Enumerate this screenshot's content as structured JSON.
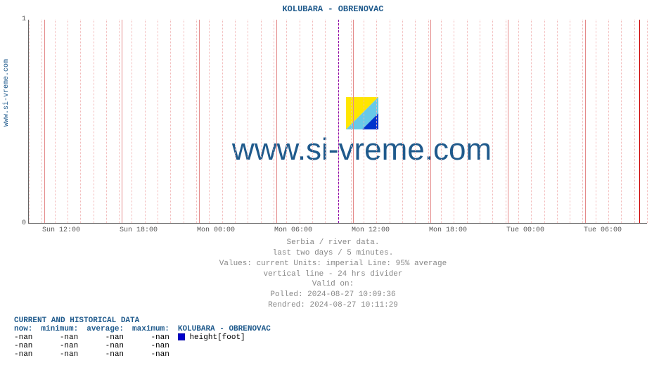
{
  "title": "KOLUBARA -  OBRENOVAC",
  "y_axis_label": "www.si-vreme.com",
  "watermark_text": "www.si-vreme.com",
  "chart": {
    "type": "line",
    "background_color": "#ffffff",
    "grid_minor_color": "#f2b8b8",
    "grid_major_color": "#e48a8a",
    "axis_color": "#666666",
    "divider_color": "#8800aa",
    "now_line_color": "#cc0000",
    "text_color": "#555555",
    "accent_color": "#1f5a8c",
    "ylim": [
      0,
      1
    ],
    "yticks": [
      0,
      1
    ],
    "x_tick_labels": [
      "Sun 12:00",
      "Sun 18:00",
      "Mon 00:00",
      "Mon 06:00",
      "Mon 12:00",
      "Mon 18:00",
      "Tue 00:00",
      "Tue 06:00"
    ],
    "x_tick_positions_pct": [
      2.5,
      15.0,
      27.5,
      40.0,
      52.5,
      65.0,
      77.5,
      90.0
    ],
    "x_minor_count_per_major": 6,
    "divider_position_pct": 50.0,
    "now_position_pct": 98.7,
    "series": [
      {
        "label": "height[foot]",
        "color": "#0000cc",
        "values": []
      }
    ]
  },
  "watermark_logo": {
    "colors": [
      "#ffe600",
      "#68c9e8",
      "#0033cc"
    ]
  },
  "meta_lines": [
    "Serbia / river data.",
    "last two days / 5 minutes.",
    "Values: current  Units: imperial  Line: 95% average",
    "vertical line - 24 hrs  divider",
    "Valid on:",
    "Polled: 2024-08-27 10:09:36",
    "Rendred: 2024-08-27 10:11:29"
  ],
  "data_table": {
    "header": "CURRENT AND HISTORICAL DATA",
    "columns": [
      "now:",
      "minimum:",
      "average:",
      "maximum:"
    ],
    "series_header": "KOLUBARA -  OBRENOVAC",
    "rows": [
      [
        "-nan",
        "-nan",
        "-nan",
        "-nan"
      ],
      [
        "-nan",
        "-nan",
        "-nan",
        "-nan"
      ],
      [
        "-nan",
        "-nan",
        "-nan",
        "-nan"
      ]
    ],
    "series_label": "height[foot]",
    "swatch_color": "#0000cc"
  }
}
